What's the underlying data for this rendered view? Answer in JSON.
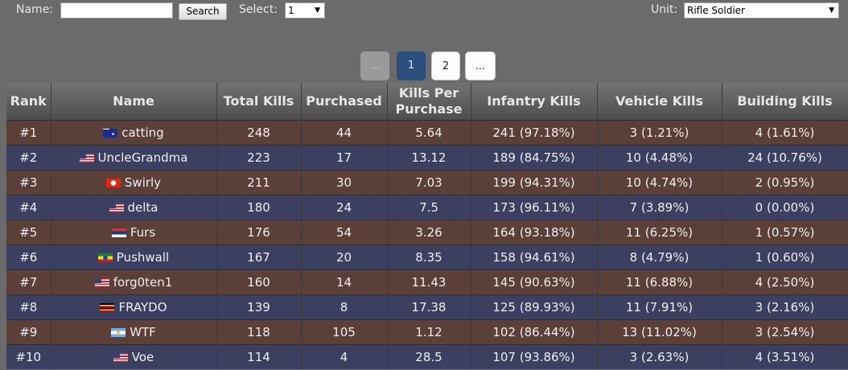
{
  "filters": {
    "name_label": "Name:",
    "name_value": "",
    "search_label": "Search",
    "select_label": "Select:",
    "select_value": "1",
    "unit_label": "Unit:",
    "unit_value": "Rifle Soldier"
  },
  "pagination": {
    "prev": "...",
    "page1": "1",
    "page2": "2",
    "next": "..."
  },
  "table": {
    "headers": {
      "rank": "Rank",
      "name": "Name",
      "total_kills": "Total Kills",
      "purchased": "Purchased",
      "kpp_line1": "Kills Per",
      "kpp_line2": "Purchase",
      "infantry": "Infantry Kills",
      "vehicle": "Vehicle Kills",
      "building": "Building Kills"
    },
    "rows": [
      {
        "rank": "#1",
        "flag": "australia-flag",
        "name": "catting",
        "total": "248",
        "purchased": "44",
        "kpp": "5.64",
        "infantry": "241 (97.18%)",
        "vehicle": "3 (1.21%)",
        "building": "4 (1.61%)"
      },
      {
        "rank": "#2",
        "flag": "usa-flag",
        "name": "UncleGrandma",
        "total": "223",
        "purchased": "17",
        "kpp": "13.12",
        "infantry": "189 (84.75%)",
        "vehicle": "10 (4.48%)",
        "building": "24 (10.76%)"
      },
      {
        "rank": "#3",
        "flag": "hong-kong-flag",
        "name": "Swirly",
        "total": "211",
        "purchased": "30",
        "kpp": "7.03",
        "infantry": "199 (94.31%)",
        "vehicle": "10 (4.74%)",
        "building": "2 (0.95%)"
      },
      {
        "rank": "#4",
        "flag": "usa-flag",
        "name": "delta",
        "total": "180",
        "purchased": "24",
        "kpp": "7.5",
        "infantry": "173 (96.11%)",
        "vehicle": "7 (3.89%)",
        "building": "0 (0.00%)"
      },
      {
        "rank": "#5",
        "flag": "serbia-flag",
        "name": "Furs",
        "total": "176",
        "purchased": "54",
        "kpp": "3.26",
        "infantry": "164 (93.18%)",
        "vehicle": "11 (6.25%)",
        "building": "1 (0.57%)"
      },
      {
        "rank": "#6",
        "flag": "ethiopia-flag",
        "name": "Pushwall",
        "total": "167",
        "purchased": "20",
        "kpp": "8.35",
        "infantry": "158 (94.61%)",
        "vehicle": "8 (4.79%)",
        "building": "1 (0.60%)"
      },
      {
        "rank": "#7",
        "flag": "usa-flag",
        "name": "forg0ten1",
        "total": "160",
        "purchased": "14",
        "kpp": "11.43",
        "infantry": "145 (90.63%)",
        "vehicle": "11 (6.88%)",
        "building": "4 (2.50%)"
      },
      {
        "rank": "#8",
        "flag": "uganda-flag",
        "name": "FRAYDO",
        "total": "139",
        "purchased": "8",
        "kpp": "17.38",
        "infantry": "125 (89.93%)",
        "vehicle": "11 (7.91%)",
        "building": "3 (2.16%)"
      },
      {
        "rank": "#9",
        "flag": "argentina-flag",
        "name": "WTF",
        "total": "118",
        "purchased": "105",
        "kpp": "1.12",
        "infantry": "102 (86.44%)",
        "vehicle": "13 (11.02%)",
        "building": "3 (2.54%)"
      },
      {
        "rank": "#10",
        "flag": "usa-flag",
        "name": "Voe",
        "total": "114",
        "purchased": "4",
        "kpp": "28.5",
        "infantry": "107 (93.86%)",
        "vehicle": "3 (2.63%)",
        "building": "4 (3.51%)"
      }
    ]
  },
  "colors": {
    "background": "#6b6b6b",
    "row_odd": "#5a4038",
    "row_even": "#3c4060",
    "active_page": "#2a4f7c"
  }
}
